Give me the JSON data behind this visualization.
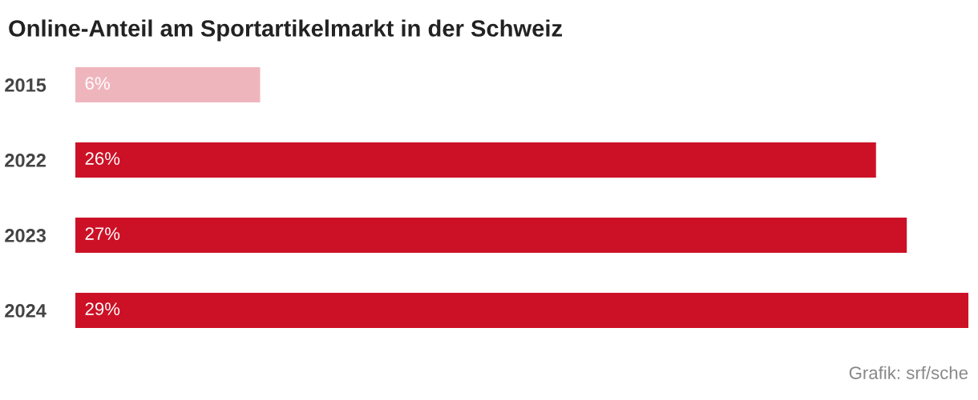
{
  "chart_data": {
    "type": "bar",
    "orientation": "horizontal",
    "title": "Online-Anteil am Sportartikelmarkt in der Schweiz",
    "categories": [
      "2015",
      "2022",
      "2023",
      "2024"
    ],
    "values": [
      6,
      26,
      27,
      29
    ],
    "colors": [
      "#efb5bd",
      "#cc1126",
      "#cc1126",
      "#cc1126"
    ],
    "value_labels": [
      "6%",
      "26%",
      "27%",
      "29%"
    ],
    "annotations": [
      "Grafik: srf/sche"
    ],
    "grid": false,
    "legend": false
  }
}
